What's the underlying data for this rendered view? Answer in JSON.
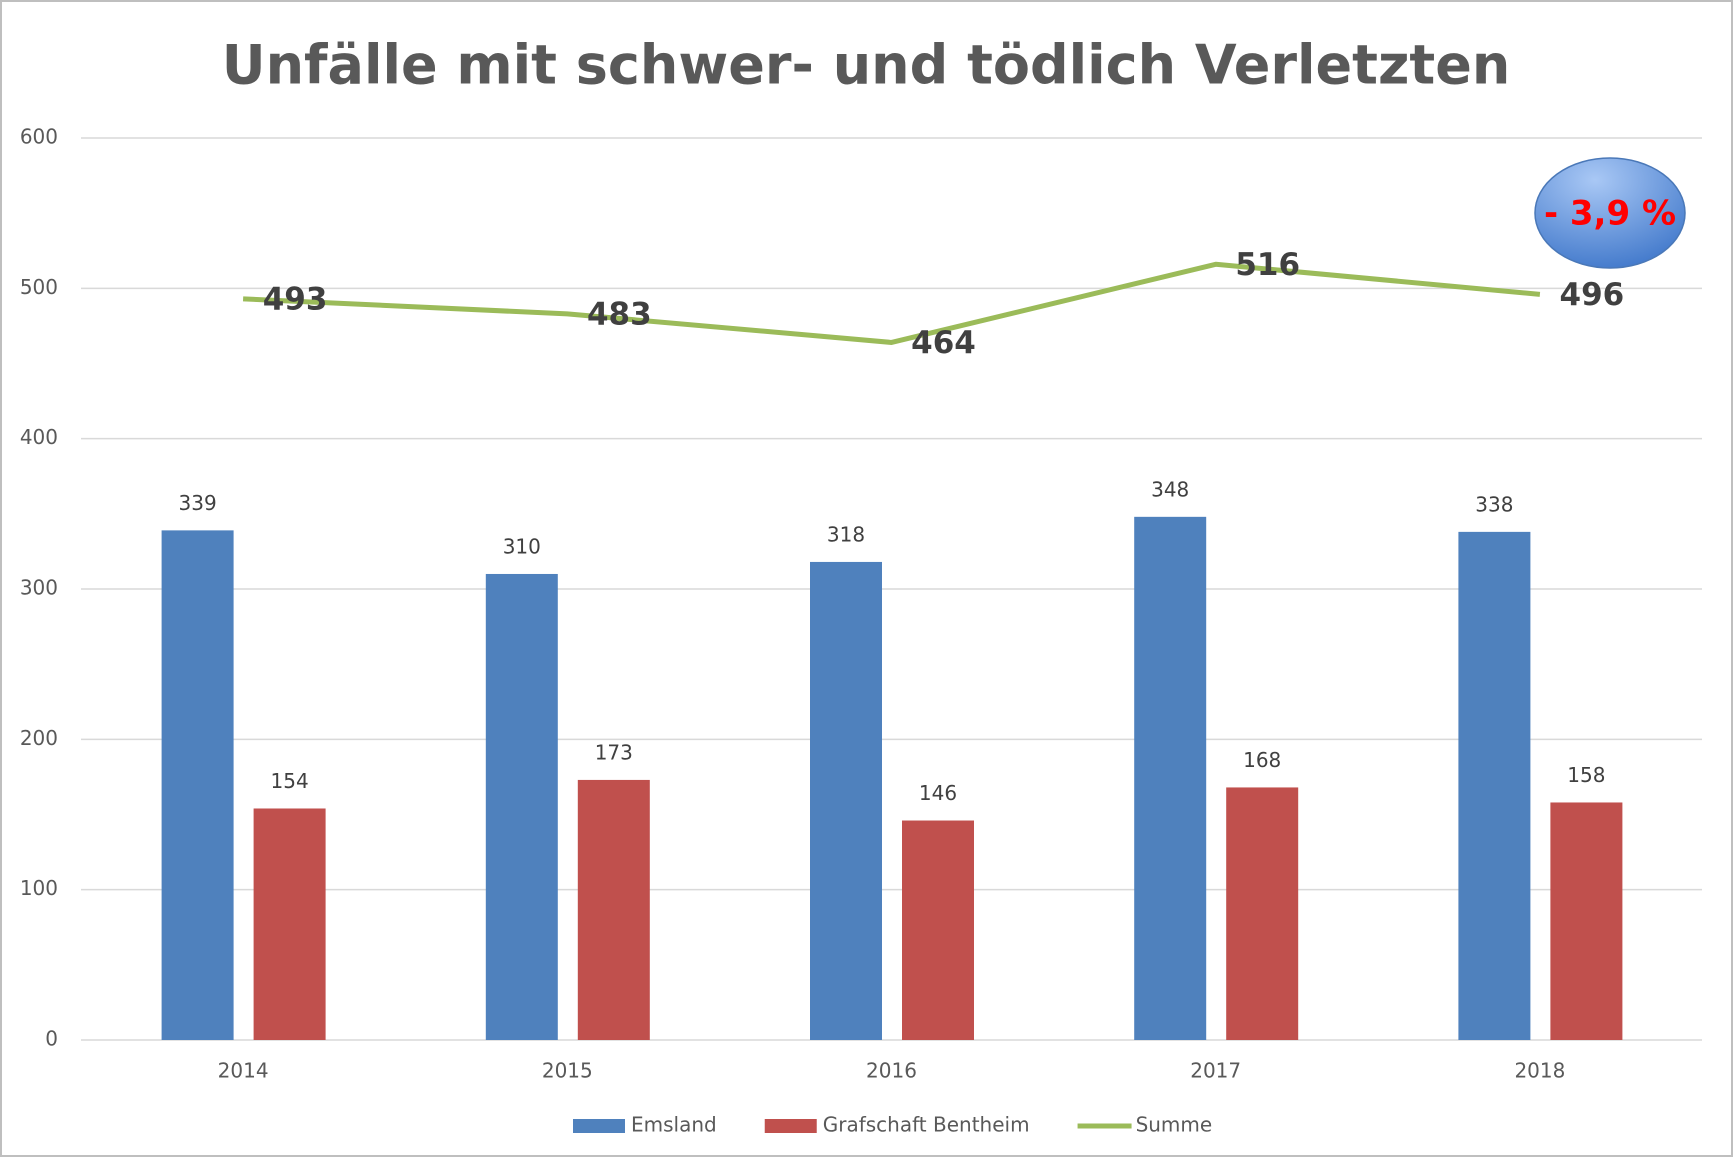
{
  "chart_data": {
    "type": "bar",
    "title": "Unfälle mit schwer- und tödlich Verletzten",
    "categories": [
      "2014",
      "2015",
      "2016",
      "2017",
      "2018"
    ],
    "series": [
      {
        "name": "Emsland",
        "color": "#4f81bd",
        "values": [
          339,
          310,
          318,
          348,
          338
        ]
      },
      {
        "name": "Grafschaft Bentheim",
        "color": "#c0504d",
        "values": [
          154,
          173,
          146,
          168,
          158
        ]
      },
      {
        "name": "Summe",
        "color": "#9bbb59",
        "type": "line",
        "values": [
          493,
          483,
          464,
          516,
          496
        ]
      }
    ],
    "annotation": "- 3,9 %",
    "ylim": [
      0,
      600
    ],
    "yticks": [
      0,
      100,
      200,
      300,
      400,
      500,
      600
    ],
    "grid": true,
    "legend": "bottom"
  }
}
